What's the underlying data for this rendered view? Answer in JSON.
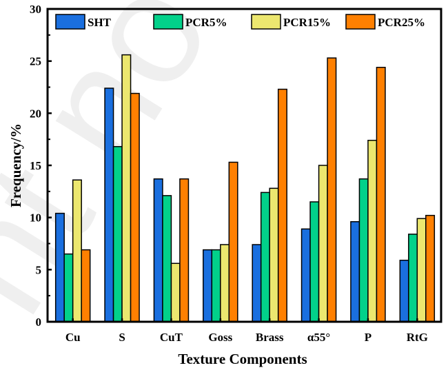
{
  "chart_data": {
    "type": "bar",
    "title": "",
    "xlabel": "Texture Components",
    "ylabel": "Frequency/%",
    "ylim": [
      0,
      30
    ],
    "yticks": [
      0,
      5,
      10,
      15,
      20,
      25,
      30
    ],
    "ytick_labels": [
      "0",
      "5",
      "10",
      "15",
      "20",
      "25",
      "30"
    ],
    "grid": false,
    "legend_position": "top",
    "categories": [
      "Cu",
      "S",
      "CuT",
      "Goss",
      "Brass",
      "α55°",
      "P",
      "RtG"
    ],
    "series": [
      {
        "name": "SHT",
        "color": "#1a6fdf",
        "values": [
          10.4,
          22.4,
          13.7,
          6.9,
          7.4,
          8.9,
          9.6,
          5.9
        ]
      },
      {
        "name": "PCR5%",
        "color": "#02d18a",
        "values": [
          6.5,
          16.8,
          12.1,
          6.9,
          12.4,
          11.5,
          13.7,
          8.4
        ]
      },
      {
        "name": "PCR15%",
        "color": "#ece76f",
        "values": [
          13.6,
          25.6,
          5.6,
          7.4,
          12.8,
          15.0,
          17.4,
          9.9
        ]
      },
      {
        "name": "PCR25%",
        "color": "#ff8001",
        "values": [
          6.9,
          21.9,
          13.7,
          15.3,
          22.3,
          25.3,
          24.4,
          10.2
        ]
      }
    ]
  },
  "watermark": "nt no"
}
